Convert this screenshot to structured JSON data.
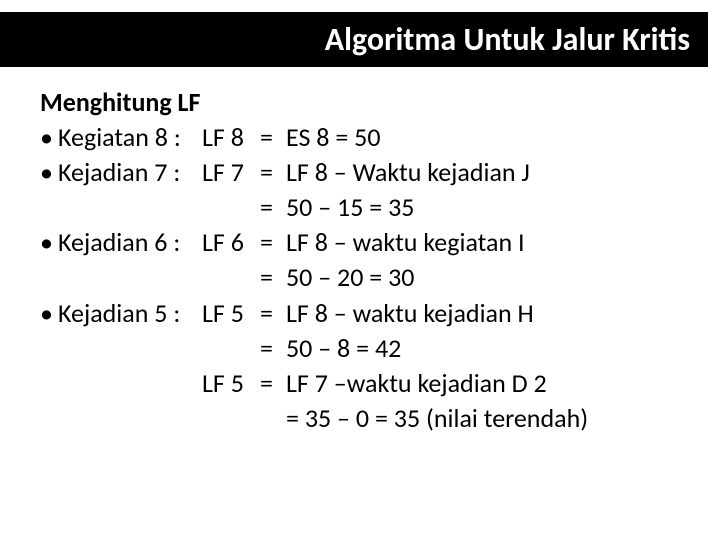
{
  "title": "Algoritma Untuk Jalur Kritis",
  "heading": "Menghitung LF",
  "colors": {
    "title_bg": "#000000",
    "title_fg": "#ffffff",
    "page_bg": "#ffffff",
    "text": "#000000"
  },
  "typography": {
    "title_fontsize": 32,
    "body_fontsize": 26,
    "font_family": "Calibri"
  },
  "bullet_char": "•",
  "rows": [
    {
      "bullet": "•",
      "label": "Kegiatan 8 :",
      "lf": "LF 8",
      "eq": "=",
      "val": "ES 8 = 50"
    },
    {
      "bullet": "•",
      "label": "Kejadian 7 :",
      "lf": "LF 7",
      "eq": "=",
      "val": "LF 8 – Waktu kejadian J"
    },
    {
      "bullet": "",
      "label": "",
      "lf": "",
      "eq": "=",
      "val": "50 – 15 = 35"
    },
    {
      "bullet": "•",
      "label": "Kejadian 6 :",
      "lf": "LF 6",
      "eq": "=",
      "val": "LF 8 – waktu kegiatan I"
    },
    {
      "bullet": "",
      "label": "",
      "lf": "",
      "eq": "=",
      "val": "50 – 20 = 30"
    },
    {
      "bullet": "•",
      "label": "Kejadian 5 :",
      "lf": "LF 5",
      "eq": "=",
      "val": "LF 8 – waktu kejadian H"
    },
    {
      "bullet": "",
      "label": "",
      "lf": "",
      "eq": "=",
      "val": "50 – 8 = 42"
    },
    {
      "bullet": "",
      "label": "",
      "lf": "LF 5",
      "eq": "=",
      "val": "LF 7 –waktu kejadian D 2"
    },
    {
      "bullet": "",
      "label": "",
      "lf": "",
      "eq": "",
      "val": "= 35 – 0 = 35 (nilai terendah)"
    }
  ]
}
